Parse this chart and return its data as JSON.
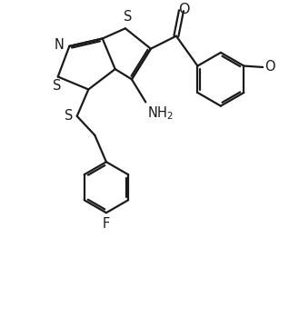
{
  "bg_color": "#ffffff",
  "line_color": "#1a1a1a",
  "line_width": 1.6,
  "font_size": 10.5,
  "figsize": [
    3.29,
    3.49
  ],
  "dpi": 100,
  "xlim": [
    0,
    9
  ],
  "ylim": [
    -4.5,
    7.5
  ]
}
